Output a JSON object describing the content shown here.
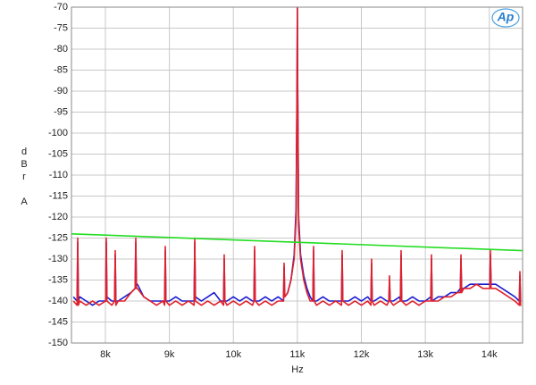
{
  "chart_data": {
    "type": "line",
    "logo": "Ap",
    "y_label": [
      "d",
      "B",
      "r",
      "A"
    ],
    "x_label": "Hz",
    "grid": true,
    "xlim": [
      7470,
      14520
    ],
    "xticks": [
      {
        "value": 8000,
        "label": "8k"
      },
      {
        "value": 9000,
        "label": "9k"
      },
      {
        "value": 10000,
        "label": "10k"
      },
      {
        "value": 11000,
        "label": "11k"
      },
      {
        "value": 12000,
        "label": "12k"
      },
      {
        "value": 13000,
        "label": "13k"
      },
      {
        "value": 14000,
        "label": "14k"
      }
    ],
    "ylim": [
      -150,
      -70
    ],
    "yticks": [
      -150,
      -145,
      -140,
      -135,
      -130,
      -125,
      -120,
      -115,
      -110,
      -105,
      -100,
      -95,
      -90,
      -85,
      -80,
      -75,
      -70
    ],
    "x": [
      7500,
      7558,
      7568,
      7578,
      7600,
      7700,
      7800,
      7900,
      8004,
      8014,
      8024,
      8100,
      8144,
      8154,
      8164,
      8200,
      8300,
      8400,
      8465,
      8475,
      8485,
      8500,
      8600,
      8700,
      8800,
      8900,
      8926,
      8936,
      8946,
      9000,
      9100,
      9200,
      9300,
      9387,
      9397,
      9407,
      9500,
      9600,
      9700,
      9800,
      9847,
      9857,
      9867,
      9900,
      10000,
      10100,
      10200,
      10300,
      10322,
      10332,
      10342,
      10400,
      10500,
      10600,
      10700,
      10783,
      10793,
      10803,
      10850,
      10900,
      10950,
      10980,
      10995,
      11000,
      11005,
      11020,
      11050,
      11100,
      11150,
      11200,
      11243,
      11253,
      11263,
      11300,
      11400,
      11500,
      11600,
      11690,
      11700,
      11710,
      11800,
      11900,
      12000,
      12100,
      12150,
      12160,
      12170,
      12200,
      12300,
      12400,
      12430,
      12440,
      12450,
      12500,
      12600,
      12611,
      12621,
      12631,
      12700,
      12800,
      12900,
      13000,
      13086,
      13096,
      13106,
      13200,
      13300,
      13400,
      13500,
      13547,
      13557,
      13567,
      13600,
      13700,
      13800,
      13900,
      14000,
      14007,
      14017,
      14027,
      14100,
      14200,
      14300,
      14400,
      14468,
      14478,
      14488,
      14500
    ],
    "series": [
      {
        "color": "#1c1cd0",
        "values": [
          -139,
          -140,
          -126,
          -140,
          -139,
          -140,
          -141,
          -140,
          -140,
          -126,
          -139,
          -140,
          -140,
          -129,
          -140,
          -140,
          -139,
          -138,
          -137,
          -126,
          -136,
          -136,
          -139,
          -140,
          -140,
          -140,
          -140,
          -128,
          -140,
          -140,
          -139,
          -140,
          -140,
          -140,
          -126,
          -139,
          -140,
          -139,
          -138,
          -140,
          -140,
          -130,
          -140,
          -140,
          -139,
          -140,
          -139,
          -140,
          -140,
          -128,
          -140,
          -140,
          -139,
          -140,
          -139,
          -140,
          -132,
          -139,
          -138,
          -135,
          -129,
          -118,
          -88,
          -70,
          -88,
          -120,
          -129,
          -134,
          -137,
          -139,
          -140,
          -128,
          -140,
          -140,
          -139,
          -140,
          -140,
          -140,
          -129,
          -140,
          -140,
          -139,
          -140,
          -139,
          -140,
          -131,
          -140,
          -140,
          -139,
          -140,
          -140,
          -135,
          -140,
          -140,
          -139,
          -140,
          -129,
          -140,
          -140,
          -139,
          -140,
          -140,
          -139,
          -130,
          -140,
          -139,
          -139,
          -138,
          -138,
          -137,
          -130,
          -137,
          -137,
          -136,
          -136,
          -136,
          -136,
          -136,
          -129,
          -136,
          -136,
          -137,
          -138,
          -139,
          -140,
          -134,
          -140,
          -140
        ]
      },
      {
        "color": "#e0202a",
        "values": [
          -140,
          -141,
          -125,
          -141,
          -140,
          -141,
          -140,
          -141,
          -140,
          -125,
          -140,
          -141,
          -140,
          -128,
          -141,
          -140,
          -140,
          -138,
          -137,
          -125,
          -137,
          -137,
          -139,
          -140,
          -141,
          -140,
          -141,
          -127,
          -140,
          -141,
          -140,
          -141,
          -140,
          -141,
          -125,
          -140,
          -141,
          -140,
          -141,
          -140,
          -141,
          -129,
          -140,
          -141,
          -140,
          -141,
          -140,
          -141,
          -140,
          -127,
          -140,
          -141,
          -140,
          -141,
          -140,
          -140,
          -131,
          -139,
          -138,
          -135,
          -130,
          -120,
          -90,
          -70,
          -90,
          -122,
          -130,
          -135,
          -138,
          -140,
          -140,
          -127,
          -140,
          -141,
          -140,
          -141,
          -140,
          -141,
          -128,
          -140,
          -141,
          -140,
          -141,
          -140,
          -141,
          -130,
          -140,
          -141,
          -140,
          -141,
          -140,
          -134,
          -140,
          -141,
          -140,
          -140,
          -128,
          -140,
          -141,
          -140,
          -141,
          -140,
          -140,
          -129,
          -140,
          -140,
          -139,
          -139,
          -138,
          -138,
          -129,
          -138,
          -137,
          -137,
          -136,
          -137,
          -137,
          -137,
          -128,
          -137,
          -137,
          -138,
          -139,
          -140,
          -141,
          -133,
          -141,
          -141
        ]
      },
      {
        "color": "#22dd22",
        "x": [
          7470,
          14520
        ],
        "values": [
          -124,
          -128
        ]
      }
    ]
  }
}
